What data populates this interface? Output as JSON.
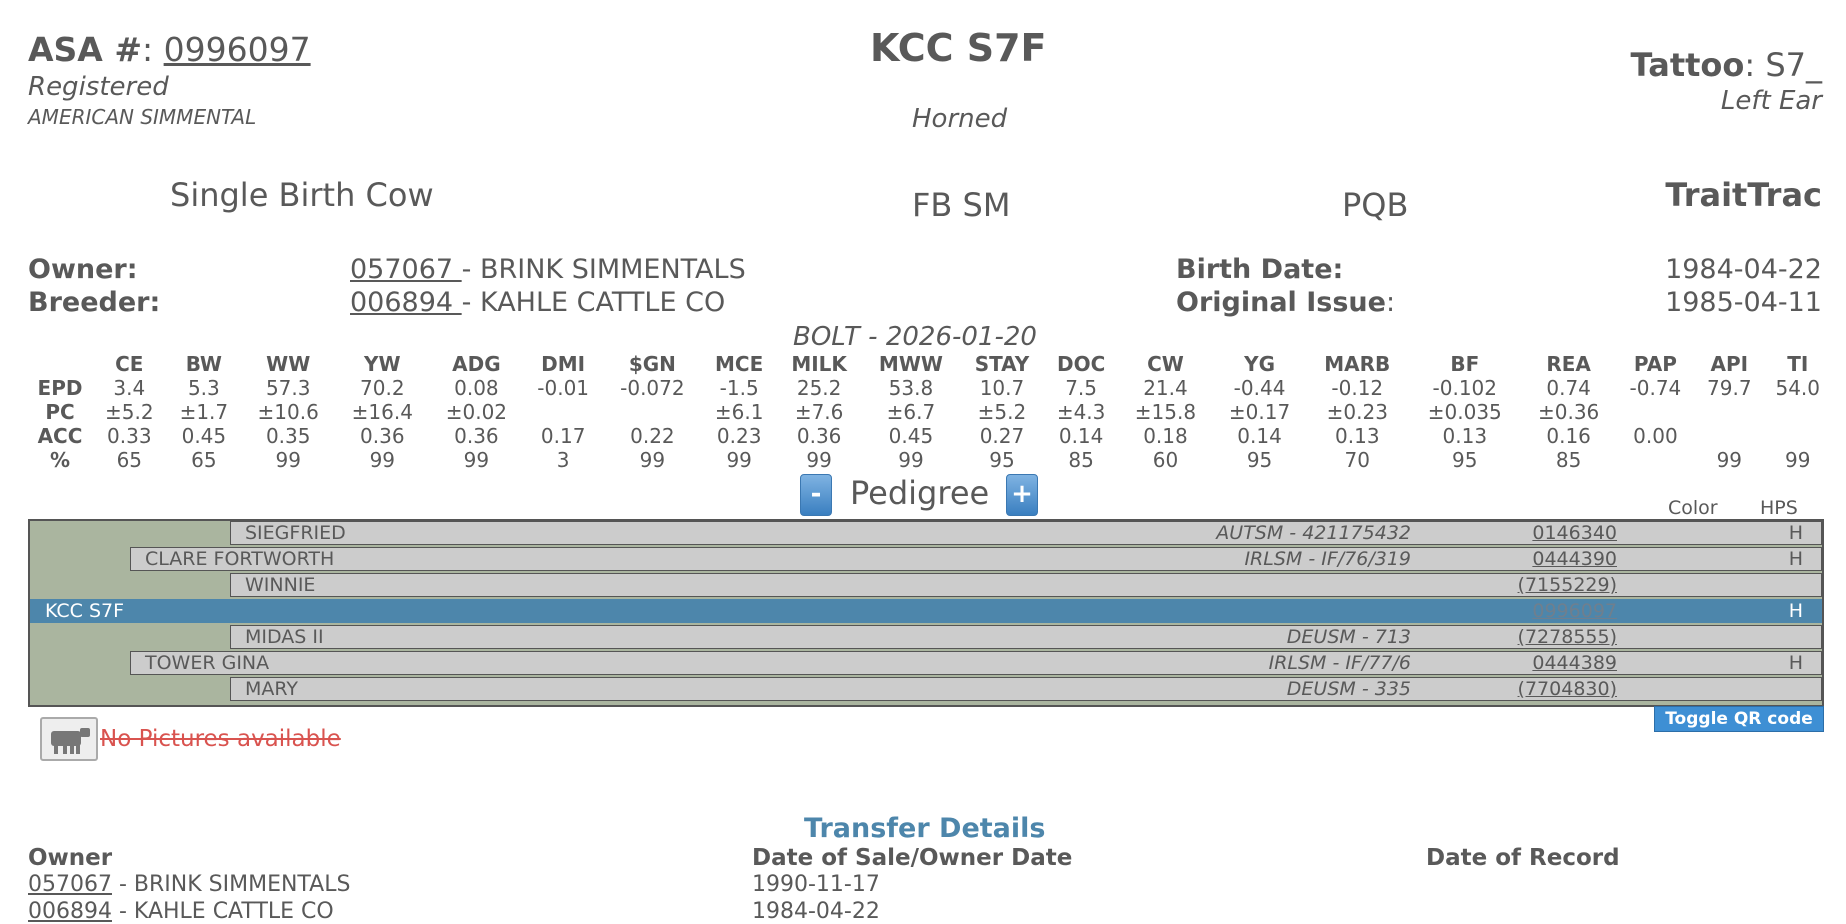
{
  "header": {
    "asa_label": "ASA #",
    "asa_colon": ":",
    "asa_number": "0996097",
    "status": "Registered",
    "breed": "AMERICAN SIMMENTAL",
    "animal_name": "KCC S7F",
    "horn_status": "Horned",
    "tattoo_label": "Tattoo",
    "tattoo_value": ": S7_",
    "tattoo_location": "Left Ear",
    "birth_type": "Single Birth Cow",
    "breed_code": "FB SM",
    "pqb": "PQB",
    "traittrac": "TraitTrac"
  },
  "ownership": {
    "owner_label": "Owner:",
    "owner_id": "057067 ",
    "owner_name": "- BRINK SIMMENTALS",
    "breeder_label": "Breeder:",
    "breeder_id": "006894 ",
    "breeder_name": "- KAHLE CATTLE CO",
    "birth_date_label": "Birth Date:",
    "birth_date": "1984-04-22",
    "original_issue_label": "Original Issue",
    "original_issue_colon": ":",
    "original_issue": "1985-04-11"
  },
  "epd": {
    "run_label": "BOLT - 2026-01-20",
    "columns": [
      "CE",
      "BW",
      "WW",
      "YW",
      "ADG",
      "DMI",
      "$GN",
      "MCE",
      "MILK",
      "MWW",
      "STAY",
      "DOC",
      "CW",
      "YG",
      "MARB",
      "BF",
      "REA",
      "PAP",
      "API",
      "TI"
    ],
    "rows": [
      {
        "label": "EPD",
        "values": [
          "3.4",
          "5.3",
          "57.3",
          "70.2",
          "0.08",
          "-0.01",
          "-0.072",
          "-1.5",
          "25.2",
          "53.8",
          "10.7",
          "7.5",
          "21.4",
          "-0.44",
          "-0.12",
          "-0.102",
          "0.74",
          "-0.74",
          "79.7",
          "54.0"
        ]
      },
      {
        "label": "PC",
        "values": [
          "±5.2",
          "±1.7",
          "±10.6",
          "±16.4",
          "±0.02",
          "",
          "",
          "±6.1",
          "±7.6",
          "±6.7",
          "±5.2",
          "±4.3",
          "±15.8",
          "±0.17",
          "±0.23",
          "±0.035",
          "±0.36",
          "",
          "",
          ""
        ]
      },
      {
        "label": "ACC",
        "values": [
          "0.33",
          "0.45",
          "0.35",
          "0.36",
          "0.36",
          "0.17",
          "0.22",
          "0.23",
          "0.36",
          "0.45",
          "0.27",
          "0.14",
          "0.18",
          "0.14",
          "0.13",
          "0.13",
          "0.16",
          "0.00",
          "",
          ""
        ]
      },
      {
        "label": "%",
        "values": [
          "65",
          "65",
          "99",
          "99",
          "99",
          "3",
          "99",
          "99",
          "99",
          "99",
          "95",
          "85",
          "60",
          "95",
          "70",
          "95",
          "85",
          "",
          "99",
          "99"
        ]
      }
    ]
  },
  "pedigree": {
    "title": "Pedigree",
    "minus": "-",
    "plus": "+",
    "color_header": "Color",
    "hps_header": "HPS",
    "rows": [
      {
        "name": "SIEGFRIED",
        "reg": "AUTSM - 421175432",
        "num": "0146340",
        "hps": "H"
      },
      {
        "name": "CLARE FORTWORTH",
        "reg": "IRLSM - IF/76/319",
        "num": "0444390",
        "hps": "H"
      },
      {
        "name": "WINNIE",
        "reg": "",
        "num": "(7155229)",
        "hps": ""
      },
      {
        "name": "KCC S7F",
        "reg": "",
        "num": "0996097",
        "hps": "H"
      },
      {
        "name": "MIDAS II",
        "reg": "DEUSM - 713",
        "num": "(7278555)",
        "hps": ""
      },
      {
        "name": "TOWER GINA",
        "reg": "IRLSM - IF/77/6",
        "num": "0444389",
        "hps": "H"
      },
      {
        "name": "MARY",
        "reg": "DEUSM - 335",
        "num": "(7704830)",
        "hps": ""
      }
    ],
    "toggle_qr": "Toggle QR code"
  },
  "pictures": {
    "no_pictures": "No Pictures available",
    "icon": "cow-icon"
  },
  "transfers": {
    "title": "Transfer Details",
    "col_owner": "Owner",
    "col_date_sale": "Date of Sale/Owner Date",
    "col_date_record": "Date of Record",
    "rows": [
      {
        "id": "057067",
        "name": " - BRINK SIMMENTALS",
        "date_sale": "1990-11-17",
        "date_record": ""
      },
      {
        "id": "006894",
        "name": " - KAHLE CATTLE CO",
        "date_sale": "1984-04-22",
        "date_record": ""
      }
    ]
  },
  "colors": {
    "text": "#595959",
    "accent": "#4d86ab",
    "pedigree_bg": "#cccccc",
    "pedigree_tree": "#aab59f",
    "button": "#3e8fd4",
    "no_pictures": "#d9534f"
  }
}
